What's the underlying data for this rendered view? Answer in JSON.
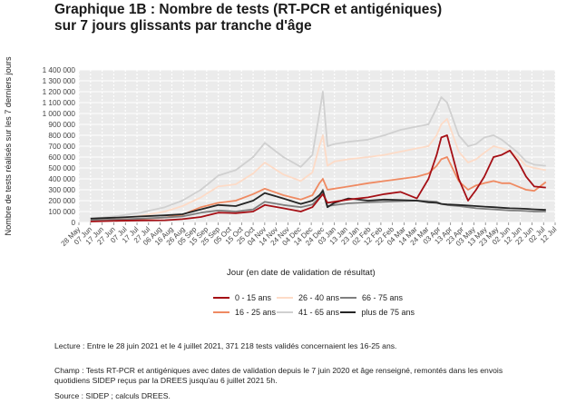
{
  "title_lines": [
    "Graphique 1B : Nombre de tests (RT-PCR et antigéniques)",
    "sur 7 jours glissants par tranche d'âge"
  ],
  "notes": {
    "lecture": "Lecture : Entre le 28 juin 2021 et le 4 juillet 2021, 371 218 tests validés concernaient les 16-25 ans.",
    "champ": "Champ : Tests RT-PCR et antigéniques avec dates de validation depuis le 7 juin 2020 et âge renseigné, remontés dans les envois quotidiens SIDEP reçus par la DREES jusqu'au 6 juillet 2021 5h.",
    "source": "Source : SIDEP ; calculs DREES."
  },
  "chart_data": {
    "type": "line",
    "title": "Graphique 1B : Nombre de tests (RT-PCR et antigéniques) sur 7 jours glissants par tranche d'âge",
    "xlabel": "Jour (en date de validation de résultat)",
    "ylabel": "Nombre de tests réalisés sur les 7 derniers jours",
    "ylim": [
      0,
      1400000
    ],
    "yticks": [
      0,
      100000,
      200000,
      300000,
      400000,
      500000,
      600000,
      700000,
      800000,
      900000,
      1000000,
      1100000,
      1200000,
      1300000,
      1400000
    ],
    "ytick_labels": [
      "0",
      "100 000",
      "200 000",
      "300 000",
      "400 000",
      "500 000",
      "600 000",
      "700 000",
      "800 000",
      "900 000",
      "1 000 000",
      "1 100 000",
      "1 200 000",
      "1 300 000",
      "1 400 000"
    ],
    "xlim": [
      "2020-05-28",
      "2021-07-12"
    ],
    "xticks": [
      "2020-05-28",
      "2020-06-07",
      "2020-06-17",
      "2020-06-27",
      "2020-07-07",
      "2020-07-17",
      "2020-07-27",
      "2020-08-06",
      "2020-08-16",
      "2020-08-26",
      "2020-09-05",
      "2020-09-15",
      "2020-09-25",
      "2020-10-05",
      "2020-10-15",
      "2020-10-25",
      "2020-11-04",
      "2020-11-14",
      "2020-11-24",
      "2020-12-04",
      "2020-12-14",
      "2020-12-24",
      "2021-01-03",
      "2021-01-13",
      "2021-01-23",
      "2021-02-02",
      "2021-02-12",
      "2021-02-22",
      "2021-03-04",
      "2021-03-14",
      "2021-03-24",
      "2021-04-03",
      "2021-04-13",
      "2021-04-23",
      "2021-05-03",
      "2021-05-13",
      "2021-05-23",
      "2021-06-02",
      "2021-06-12",
      "2021-06-22",
      "2021-07-02",
      "2021-07-12"
    ],
    "xtick_labels": [
      "28 May",
      "07 Jun",
      "17 Jun",
      "27 Jun",
      "07 Jul",
      "17 Jul",
      "27 Jul",
      "06 Aug",
      "16 Aug",
      "26 Aug",
      "05 Sep",
      "15 Sep",
      "25 Sep",
      "05 Oct",
      "15 Oct",
      "25 Oct",
      "04 Nov",
      "14 Nov",
      "24 Nov",
      "04 Dec",
      "14 Dec",
      "24 Dec",
      "03 Jan",
      "13 Jan",
      "23 Jan",
      "02 Feb",
      "12 Feb",
      "22 Feb",
      "04 Mar",
      "14 Mar",
      "24 Mar",
      "03 Apr",
      "13 Apr",
      "23 Apr",
      "03 May",
      "13 May",
      "23 May",
      "02 Jun",
      "12 Jun",
      "22 Jun",
      "02 Jul",
      "12 Jul"
    ],
    "grid": true,
    "legend_position": "bottom",
    "x": [
      "2020-06-07",
      "2020-07-01",
      "2020-07-20",
      "2020-08-10",
      "2020-08-25",
      "2020-09-10",
      "2020-09-25",
      "2020-10-10",
      "2020-10-25",
      "2020-11-04",
      "2020-11-20",
      "2020-12-05",
      "2020-12-15",
      "2020-12-21",
      "2020-12-24",
      "2020-12-28",
      "2021-01-03",
      "2021-01-15",
      "2021-02-01",
      "2021-02-15",
      "2021-03-01",
      "2021-03-15",
      "2021-03-25",
      "2021-04-01",
      "2021-04-05",
      "2021-04-10",
      "2021-04-20",
      "2021-04-28",
      "2021-05-05",
      "2021-05-12",
      "2021-05-20",
      "2021-05-27",
      "2021-06-03",
      "2021-06-10",
      "2021-06-17",
      "2021-06-24",
      "2021-07-04"
    ],
    "series": [
      {
        "name": "0 - 15 ans",
        "color": "#a50f15",
        "values": [
          8000,
          15000,
          18000,
          20000,
          30000,
          50000,
          90000,
          85000,
          100000,
          160000,
          130000,
          100000,
          140000,
          220000,
          260000,
          180000,
          190000,
          210000,
          230000,
          260000,
          280000,
          220000,
          400000,
          620000,
          780000,
          800000,
          400000,
          200000,
          300000,
          420000,
          600000,
          620000,
          660000,
          560000,
          420000,
          330000,
          320000
        ]
      },
      {
        "name": "16 - 25 ans",
        "color": "#ef8a62",
        "values": [
          12000,
          22000,
          30000,
          45000,
          70000,
          140000,
          180000,
          200000,
          260000,
          310000,
          250000,
          210000,
          250000,
          360000,
          400000,
          300000,
          310000,
          330000,
          360000,
          380000,
          400000,
          420000,
          450000,
          520000,
          580000,
          600000,
          380000,
          300000,
          340000,
          360000,
          380000,
          360000,
          360000,
          330000,
          300000,
          290000,
          371218
        ]
      },
      {
        "name": "26 - 40 ans",
        "color": "#fddbc7",
        "values": [
          20000,
          35000,
          60000,
          100000,
          150000,
          230000,
          330000,
          350000,
          450000,
          550000,
          440000,
          380000,
          460000,
          700000,
          800000,
          520000,
          560000,
          580000,
          600000,
          620000,
          650000,
          680000,
          700000,
          800000,
          900000,
          950000,
          650000,
          550000,
          580000,
          640000,
          700000,
          680000,
          650000,
          600000,
          520000,
          500000,
          480000
        ]
      },
      {
        "name": "41 - 65 ans",
        "color": "#d0d0d0",
        "values": [
          35000,
          60000,
          90000,
          140000,
          200000,
          300000,
          430000,
          480000,
          600000,
          730000,
          600000,
          510000,
          620000,
          1000000,
          1200000,
          700000,
          720000,
          740000,
          760000,
          800000,
          850000,
          880000,
          900000,
          1050000,
          1150000,
          1100000,
          800000,
          700000,
          720000,
          780000,
          800000,
          760000,
          700000,
          640000,
          560000,
          530000,
          520000
        ]
      },
      {
        "name": "66 - 75 ans",
        "color": "#7f7f7f",
        "values": [
          20000,
          28000,
          35000,
          45000,
          55000,
          90000,
          110000,
          100000,
          120000,
          190000,
          160000,
          140000,
          165000,
          230000,
          300000,
          150000,
          160000,
          175000,
          185000,
          190000,
          195000,
          200000,
          195000,
          190000,
          170000,
          160000,
          150000,
          140000,
          130000,
          125000,
          120000,
          115000,
          110000,
          108000,
          105000,
          100000,
          100000
        ]
      },
      {
        "name": "plus de 75 ans",
        "color": "#252525",
        "values": [
          35000,
          45000,
          55000,
          65000,
          75000,
          120000,
          160000,
          150000,
          200000,
          270000,
          220000,
          170000,
          200000,
          250000,
          290000,
          140000,
          180000,
          220000,
          200000,
          210000,
          205000,
          200000,
          185000,
          180000,
          170000,
          165000,
          160000,
          155000,
          150000,
          145000,
          140000,
          135000,
          130000,
          128000,
          125000,
          120000,
          115000
        ]
      }
    ]
  },
  "legend": {
    "items": [
      {
        "label": "0 - 15 ans",
        "color": "#a50f15"
      },
      {
        "label": "26 - 40 ans",
        "color": "#fddbc7"
      },
      {
        "label": "66 - 75 ans",
        "color": "#7f7f7f"
      },
      {
        "label": "16 - 25 ans",
        "color": "#ef8a62"
      },
      {
        "label": "41 - 65 ans",
        "color": "#d0d0d0"
      },
      {
        "label": "plus de 75 ans",
        "color": "#252525"
      }
    ]
  }
}
